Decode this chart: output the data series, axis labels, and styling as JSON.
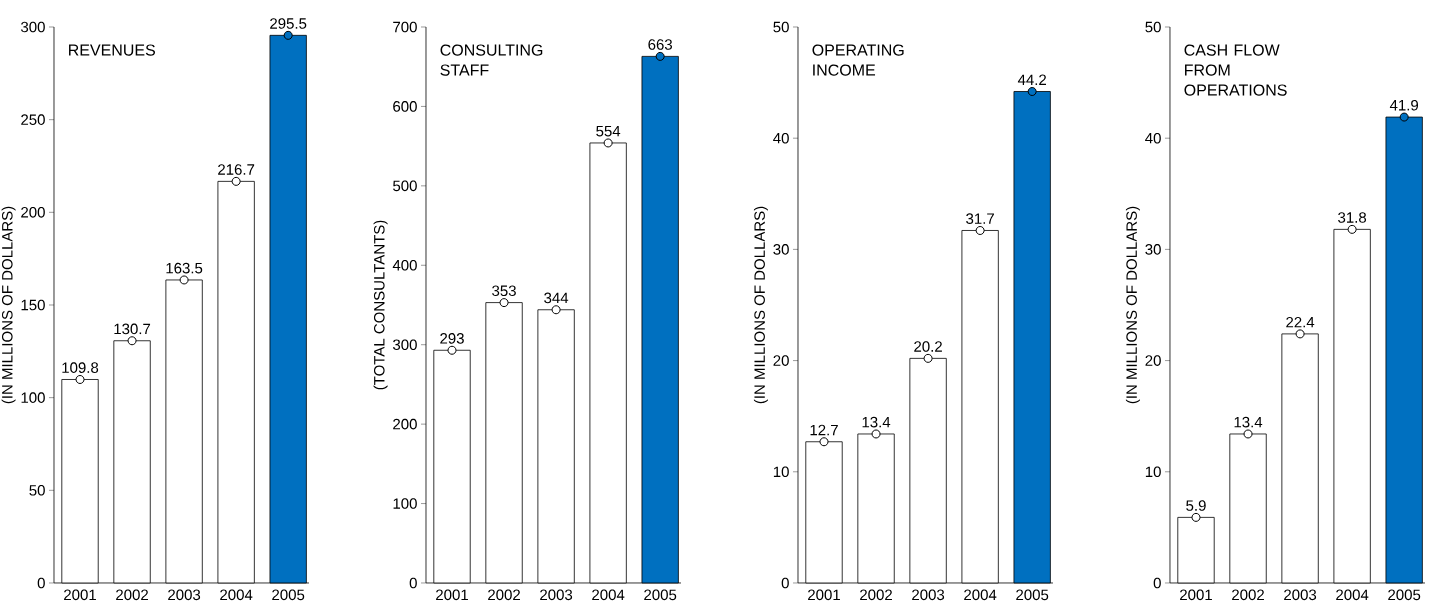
{
  "chart_data": [
    {
      "type": "bar",
      "title": "REVENUES",
      "ylabel": "(IN MILLIONS OF DOLLARS)",
      "categories": [
        "2001",
        "2002",
        "2003",
        "2004",
        "2005"
      ],
      "values": [
        109.8,
        130.7,
        163.5,
        216.7,
        295.5
      ],
      "colors": [
        "#ffffff",
        "#ffffff",
        "#ffffff",
        "#ffffff",
        "#0070c0"
      ],
      "ylim": [
        0,
        300
      ],
      "yticks": [
        0,
        50,
        100,
        150,
        200,
        250,
        300
      ],
      "data_labels": true,
      "marker": "circle"
    },
    {
      "type": "bar",
      "title": "CONSULTING STAFF",
      "ylabel": "(TOTAL CONSULTANTS)",
      "categories": [
        "2001",
        "2002",
        "2003",
        "2004",
        "2005"
      ],
      "values": [
        293,
        353,
        344,
        554,
        663
      ],
      "colors": [
        "#ffffff",
        "#ffffff",
        "#ffffff",
        "#ffffff",
        "#0070c0"
      ],
      "ylim": [
        0,
        700
      ],
      "yticks": [
        0,
        100,
        200,
        300,
        400,
        500,
        600,
        700
      ],
      "data_labels": true,
      "marker": "circle"
    },
    {
      "type": "bar",
      "title": "OPERATING INCOME",
      "ylabel": "(IN MILLIONS OF DOLLARS)",
      "categories": [
        "2001",
        "2002",
        "2003",
        "2004",
        "2005"
      ],
      "values": [
        12.7,
        13.4,
        20.2,
        31.7,
        44.2
      ],
      "colors": [
        "#ffffff",
        "#ffffff",
        "#ffffff",
        "#ffffff",
        "#0070c0"
      ],
      "ylim": [
        0,
        50
      ],
      "yticks": [
        0,
        10,
        20,
        30,
        40,
        50
      ],
      "data_labels": true,
      "marker": "circle"
    },
    {
      "type": "bar",
      "title": "CASH FLOW FROM OPERATIONS",
      "ylabel": "(IN MILLIONS OF DOLLARS)",
      "categories": [
        "2001",
        "2002",
        "2003",
        "2004",
        "2005"
      ],
      "values": [
        5.9,
        13.4,
        22.4,
        31.8,
        41.9
      ],
      "colors": [
        "#ffffff",
        "#ffffff",
        "#ffffff",
        "#ffffff",
        "#0070c0"
      ],
      "ylim": [
        0,
        50
      ],
      "yticks": [
        0,
        10,
        20,
        30,
        40,
        50
      ],
      "data_labels": true,
      "marker": "circle"
    }
  ]
}
